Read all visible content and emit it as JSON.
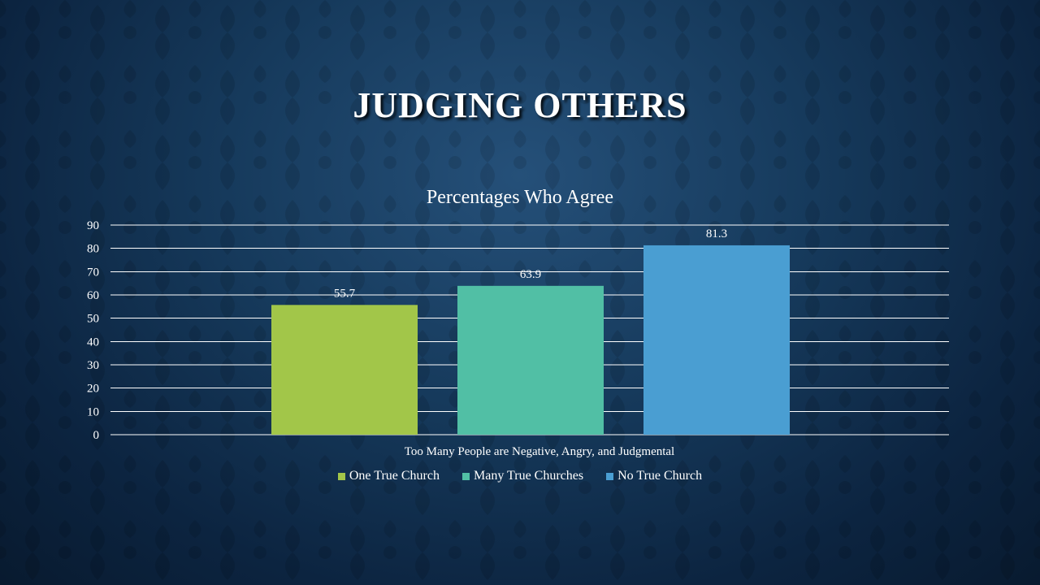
{
  "slide": {
    "title": "JUDGING OTHERS"
  },
  "chart_data": {
    "type": "bar",
    "title": "Percentages Who Agree",
    "categories": [
      "Too Many People are Negative, Angry, and Judgmental"
    ],
    "series": [
      {
        "name": "One True Church",
        "values": [
          55.7
        ],
        "color": "#a2c649"
      },
      {
        "name": "Many True Churches",
        "values": [
          63.9
        ],
        "color": "#51bfa5"
      },
      {
        "name": "No True Church",
        "values": [
          81.3
        ],
        "color": "#4a9ed2"
      }
    ],
    "ylim": [
      0,
      90
    ],
    "yticks": [
      "0",
      "10",
      "20",
      "30",
      "40",
      "50",
      "60",
      "70",
      "80",
      "90"
    ],
    "grid": true,
    "legend": "bottom",
    "data_labels": true
  }
}
